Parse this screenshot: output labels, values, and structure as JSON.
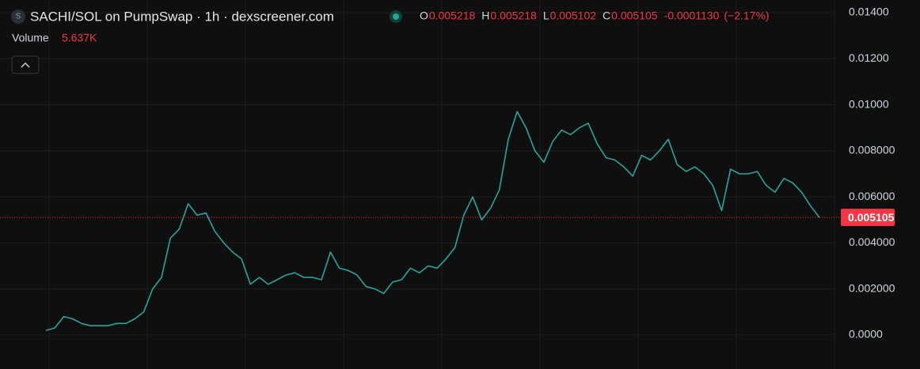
{
  "header": {
    "icon": "S",
    "title": "SACHI/SOL on PumpSwap · 1h · dexscreener.com",
    "ohlc": [
      {
        "label": "O",
        "value": "0.005218"
      },
      {
        "label": "H",
        "value": "0.005218"
      },
      {
        "label": "L",
        "value": "0.005102"
      },
      {
        "label": "C",
        "value": "0.005105"
      }
    ],
    "change": "-0.0001130",
    "change_pct": "(−2.17%)",
    "volume_label": "Volume",
    "volume_value": "5.637K"
  },
  "chart_data": {
    "type": "line",
    "color": "#26a69a",
    "values": [
      0.0002,
      0.0003,
      0.0008,
      0.0007,
      0.0005,
      0.0004,
      0.0004,
      0.0004,
      0.0005,
      0.0005,
      0.0007,
      0.001,
      0.002,
      0.0025,
      0.0042,
      0.0046,
      0.0057,
      0.0052,
      0.0053,
      0.0045,
      0.004,
      0.0036,
      0.0033,
      0.0022,
      0.0025,
      0.0022,
      0.0024,
      0.0026,
      0.0027,
      0.0025,
      0.0025,
      0.0024,
      0.0036,
      0.0029,
      0.0028,
      0.0026,
      0.0021,
      0.002,
      0.0018,
      0.0023,
      0.0024,
      0.0029,
      0.0027,
      0.003,
      0.0029,
      0.0033,
      0.0038,
      0.0052,
      0.006,
      0.005,
      0.0055,
      0.0063,
      0.0085,
      0.0097,
      0.009,
      0.008,
      0.0075,
      0.0084,
      0.0089,
      0.0087,
      0.009,
      0.0092,
      0.0083,
      0.0077,
      0.0076,
      0.0073,
      0.0069,
      0.0078,
      0.0076,
      0.008,
      0.0085,
      0.0074,
      0.0071,
      0.0073,
      0.007,
      0.0065,
      0.0054,
      0.0072,
      0.007,
      0.007,
      0.0071,
      0.0065,
      0.0062,
      0.0068,
      0.0066,
      0.0062,
      0.0056,
      0.0051
    ],
    "ylim": [
      -0.00148,
      0.01455
    ],
    "yticks": [
      {
        "value": 0,
        "label": "0.0000"
      },
      {
        "value": 0.002,
        "label": "0.002000"
      },
      {
        "value": 0.004,
        "label": "0.004000"
      },
      {
        "value": 0.006,
        "label": "0.006000"
      },
      {
        "value": 0.008,
        "label": "0.008000"
      },
      {
        "value": 0.01,
        "label": "0.01000"
      },
      {
        "value": 0.012,
        "label": "0.01200"
      },
      {
        "value": 0.014,
        "label": "0.01400"
      }
    ],
    "grid": true,
    "last_price": 0.005105,
    "last_price_color": "#f23645"
  }
}
